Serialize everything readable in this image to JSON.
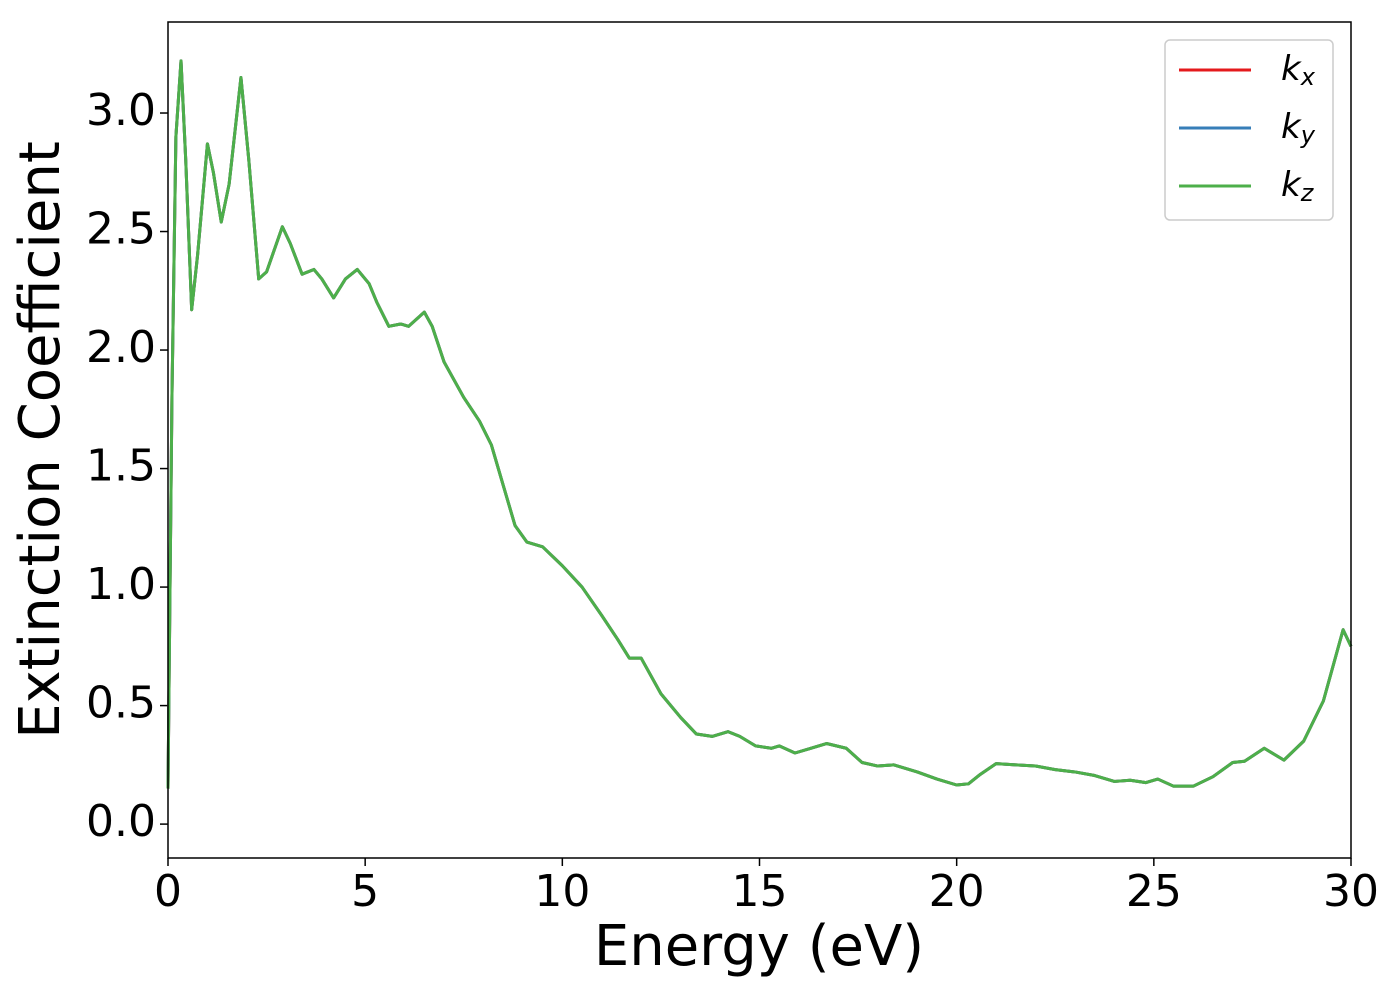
{
  "chart_data": {
    "type": "line",
    "x_label": "Energy (eV)",
    "y_label": "Extinction Coefficient",
    "x": [
      0,
      0.1,
      0.2,
      0.33,
      0.45,
      0.6,
      0.75,
      1.0,
      1.15,
      1.35,
      1.55,
      1.85,
      2.05,
      2.3,
      2.5,
      2.9,
      3.1,
      3.4,
      3.7,
      3.9,
      4.2,
      4.5,
      4.8,
      5.1,
      5.3,
      5.6,
      5.9,
      6.1,
      6.5,
      6.7,
      7.0,
      7.5,
      7.9,
      8.2,
      8.5,
      8.8,
      9.1,
      9.5,
      10.0,
      10.5,
      11.0,
      11.4,
      11.7,
      12.0,
      12.5,
      13.0,
      13.4,
      13.8,
      14.2,
      14.5,
      14.9,
      15.3,
      15.5,
      15.9,
      16.3,
      16.7,
      17.2,
      17.6,
      18.0,
      18.4,
      19.0,
      19.5,
      20.0,
      20.3,
      20.6,
      21.0,
      21.5,
      22.0,
      22.5,
      23.0,
      23.5,
      24.0,
      24.4,
      24.8,
      25.1,
      25.5,
      26.0,
      26.5,
      27.0,
      27.3,
      27.8,
      28.3,
      28.8,
      29.3,
      29.8,
      30.0
    ],
    "series": [
      {
        "name": "kx",
        "color": "#e41a1c",
        "values": [
          0.15,
          1.8,
          2.9,
          3.22,
          2.8,
          2.17,
          2.4,
          2.87,
          2.75,
          2.54,
          2.7,
          3.15,
          2.8,
          2.3,
          2.33,
          2.52,
          2.45,
          2.32,
          2.34,
          2.3,
          2.22,
          2.3,
          2.34,
          2.28,
          2.2,
          2.1,
          2.11,
          2.1,
          2.16,
          2.1,
          1.95,
          1.8,
          1.7,
          1.6,
          1.43,
          1.26,
          1.19,
          1.17,
          1.09,
          1.0,
          0.88,
          0.78,
          0.7,
          0.7,
          0.55,
          0.45,
          0.38,
          0.37,
          0.39,
          0.37,
          0.33,
          0.32,
          0.33,
          0.3,
          0.32,
          0.34,
          0.32,
          0.26,
          0.245,
          0.25,
          0.22,
          0.19,
          0.165,
          0.17,
          0.21,
          0.255,
          0.25,
          0.245,
          0.23,
          0.22,
          0.205,
          0.18,
          0.185,
          0.175,
          0.19,
          0.16,
          0.16,
          0.2,
          0.26,
          0.265,
          0.32,
          0.27,
          0.35,
          0.52,
          0.82,
          0.75
        ]
      },
      {
        "name": "ky",
        "color": "#377eb8",
        "values": [
          0.15,
          1.8,
          2.9,
          3.22,
          2.8,
          2.17,
          2.4,
          2.87,
          2.75,
          2.54,
          2.7,
          3.15,
          2.8,
          2.3,
          2.33,
          2.52,
          2.45,
          2.32,
          2.34,
          2.3,
          2.22,
          2.3,
          2.34,
          2.28,
          2.2,
          2.1,
          2.11,
          2.1,
          2.16,
          2.1,
          1.95,
          1.8,
          1.7,
          1.6,
          1.43,
          1.26,
          1.19,
          1.17,
          1.09,
          1.0,
          0.88,
          0.78,
          0.7,
          0.7,
          0.55,
          0.45,
          0.38,
          0.37,
          0.39,
          0.37,
          0.33,
          0.32,
          0.33,
          0.3,
          0.32,
          0.34,
          0.32,
          0.26,
          0.245,
          0.25,
          0.22,
          0.19,
          0.165,
          0.17,
          0.21,
          0.255,
          0.25,
          0.245,
          0.23,
          0.22,
          0.205,
          0.18,
          0.185,
          0.175,
          0.19,
          0.16,
          0.16,
          0.2,
          0.26,
          0.265,
          0.32,
          0.27,
          0.35,
          0.52,
          0.82,
          0.75
        ]
      },
      {
        "name": "kz",
        "color": "#4daf4a",
        "values": [
          0.15,
          1.8,
          2.9,
          3.22,
          2.8,
          2.17,
          2.4,
          2.87,
          2.75,
          2.54,
          2.7,
          3.15,
          2.8,
          2.3,
          2.33,
          2.52,
          2.45,
          2.32,
          2.34,
          2.3,
          2.22,
          2.3,
          2.34,
          2.28,
          2.2,
          2.1,
          2.11,
          2.1,
          2.16,
          2.1,
          1.95,
          1.8,
          1.7,
          1.6,
          1.43,
          1.26,
          1.19,
          1.17,
          1.09,
          1.0,
          0.88,
          0.78,
          0.7,
          0.7,
          0.55,
          0.45,
          0.38,
          0.37,
          0.39,
          0.37,
          0.33,
          0.32,
          0.33,
          0.3,
          0.32,
          0.34,
          0.32,
          0.26,
          0.245,
          0.25,
          0.22,
          0.19,
          0.165,
          0.17,
          0.21,
          0.255,
          0.25,
          0.245,
          0.23,
          0.22,
          0.205,
          0.18,
          0.185,
          0.175,
          0.19,
          0.16,
          0.16,
          0.2,
          0.26,
          0.265,
          0.32,
          0.27,
          0.35,
          0.52,
          0.82,
          0.75
        ]
      }
    ],
    "xlim": [
      0,
      30
    ],
    "xticks": [
      0,
      5,
      10,
      15,
      20,
      25,
      30
    ],
    "ylim": [
      -0.143,
      3.384
    ],
    "yticks": [
      {
        "value": 0,
        "label": "0.0"
      },
      0.5,
      {
        "value": 1,
        "label": "1.0"
      },
      1.5,
      {
        "value": 2,
        "label": "2.0"
      },
      2.5,
      {
        "value": 3,
        "label": "3.0"
      }
    ],
    "grid": false,
    "legend": "upper right"
  }
}
